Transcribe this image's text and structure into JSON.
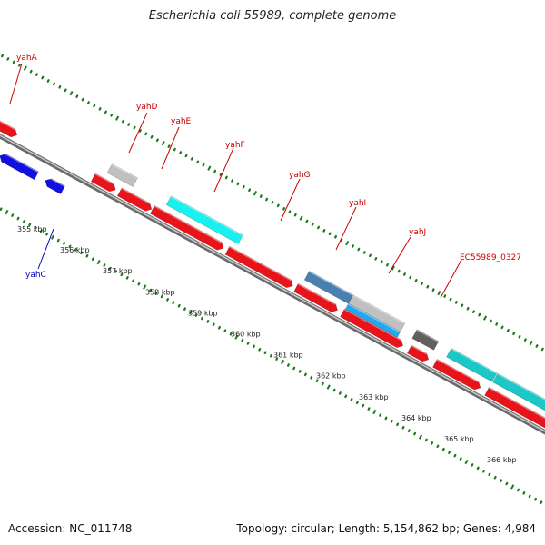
{
  "title": "Escherichia coli 55989, complete genome",
  "footer": {
    "accession": "Accession: NC_011748",
    "summary": "Topology: circular; Length: 5,154,862 bp; Genes: 4,984"
  },
  "colors": {
    "forward_label": "#cc0000",
    "reverse_label": "#0000cc",
    "backbone": "#808080",
    "tick": "#1a7a1a",
    "red": "#e8141a",
    "blue": "#1010e0",
    "cyan": "#1af0f0",
    "teal": "#1ac8c8",
    "light_gray": "#c0c0c0",
    "dark_gray": "#606060",
    "steel_blue": "#4a80b0",
    "sky_blue": "#20a8f0"
  },
  "kbp_labels": [
    "355 kbp",
    "356 kbp",
    "357 kbp",
    "358 kbp",
    "359 kbp",
    "360 kbp",
    "361 kbp",
    "362 kbp",
    "363 kbp",
    "364 kbp",
    "365 kbp",
    "366 kbp"
  ],
  "gene_labels": [
    {
      "text": "yahA",
      "strand": "forward"
    },
    {
      "text": "yahD",
      "strand": "forward"
    },
    {
      "text": "yahE",
      "strand": "forward"
    },
    {
      "text": "yahF",
      "strand": "forward"
    },
    {
      "text": "yahG",
      "strand": "forward"
    },
    {
      "text": "yahI",
      "strand": "forward"
    },
    {
      "text": "yahJ",
      "strand": "forward"
    },
    {
      "text": "EC55989_0327",
      "strand": "forward"
    },
    {
      "text": "yahC",
      "strand": "reverse"
    }
  ],
  "features": [
    {
      "kind": "cds_forward",
      "color": "red"
    },
    {
      "kind": "cds_reverse",
      "color": "blue"
    },
    {
      "kind": "cds_reverse",
      "color": "blue"
    },
    {
      "kind": "cds_forward",
      "color": "red"
    },
    {
      "kind": "cds_forward",
      "color": "red"
    },
    {
      "kind": "cds_forward",
      "color": "red"
    },
    {
      "kind": "cds_forward",
      "color": "red"
    },
    {
      "kind": "cds_forward",
      "color": "red"
    },
    {
      "kind": "cds_forward",
      "color": "red"
    },
    {
      "kind": "cds_forward",
      "color": "red"
    },
    {
      "kind": "cds_forward",
      "color": "red"
    },
    {
      "kind": "cds_forward",
      "color": "red"
    },
    {
      "kind": "cog_block",
      "color": "light_gray"
    },
    {
      "kind": "cog_block",
      "color": "cyan"
    },
    {
      "kind": "cog_block",
      "color": "steel_blue"
    },
    {
      "kind": "cog_block",
      "color": "light_gray"
    },
    {
      "kind": "cog_block",
      "color": "sky_blue"
    },
    {
      "kind": "cog_block",
      "color": "dark_gray"
    },
    {
      "kind": "cog_block",
      "color": "teal"
    },
    {
      "kind": "cog_block",
      "color": "teal"
    }
  ]
}
